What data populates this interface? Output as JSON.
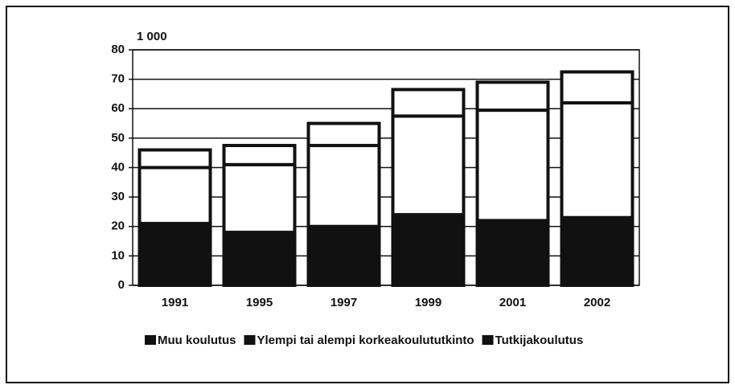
{
  "chart_data": {
    "type": "stacked-bar",
    "y_label": "1 000",
    "categories": [
      "1991",
      "1995",
      "1997",
      "1999",
      "2001",
      "2002"
    ],
    "series": [
      {
        "name": "Muu koulutus",
        "color": "#111111",
        "values": [
          21,
          18,
          20,
          24,
          22,
          23
        ]
      },
      {
        "name": "Ylempi tai alempi korkeakoulututkinto",
        "color": "#ffffff",
        "values": [
          19,
          23,
          27.5,
          33.5,
          37.5,
          39
        ]
      },
      {
        "name": "Tutkijakoulutus",
        "color": "#ffffff",
        "values": [
          6,
          6.5,
          7.5,
          9,
          9.5,
          10.5
        ]
      }
    ],
    "ylim": [
      0,
      80
    ],
    "yticks": [
      0,
      10,
      20,
      30,
      40,
      50,
      60,
      70,
      80
    ],
    "grid": true
  }
}
